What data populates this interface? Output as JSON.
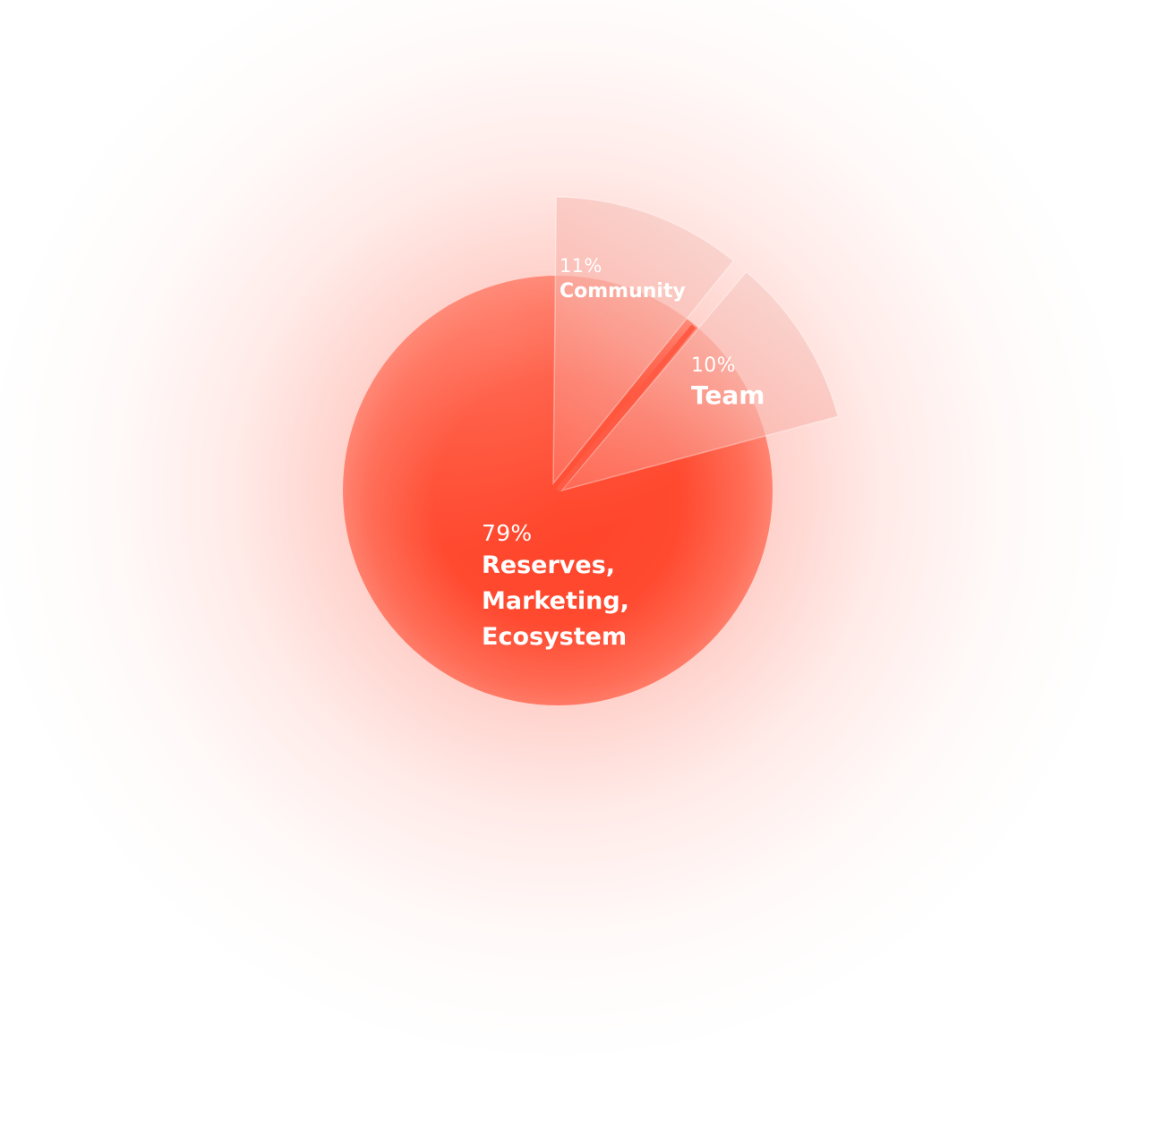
{
  "chart_data": {
    "type": "pie",
    "slices": [
      {
        "percent_label": "79%",
        "label": "Reserves,\nMarketing,\nEcosystem",
        "value": 79,
        "color": "#ff4a30",
        "exploded": false
      },
      {
        "percent_label": "11%",
        "label": "Community",
        "value": 11,
        "color": "#f8c4bd",
        "exploded": true
      },
      {
        "percent_label": "10%",
        "label": "Team",
        "value": 10,
        "color": "#f8c4bd",
        "exploded": true
      }
    ],
    "colors": {
      "main": "#ff4a30",
      "main_light": "#ff7a66",
      "exploded_fill": "#f8c4bd",
      "text": "#ffffff"
    }
  }
}
